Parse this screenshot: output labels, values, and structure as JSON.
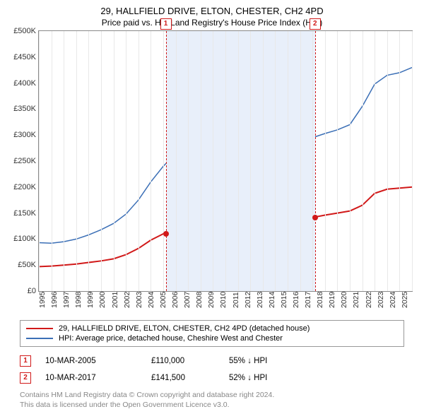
{
  "title": "29, HALLFIELD DRIVE, ELTON, CHESTER, CH2 4PD",
  "subtitle": "Price paid vs. HM Land Registry's House Price Index (HPI)",
  "chart": {
    "type": "line",
    "background_color": "#ffffff",
    "grid_color": "#e8e8e8",
    "border_color": "#888888",
    "ylim": [
      0,
      500000
    ],
    "ytickstep": 50000,
    "yticklabels": [
      "£0",
      "£50K",
      "£100K",
      "£150K",
      "£200K",
      "£250K",
      "£300K",
      "£350K",
      "£400K",
      "£450K",
      "£500K"
    ],
    "xlim": [
      1995,
      2025
    ],
    "xticks": [
      1995,
      1996,
      1997,
      1998,
      1999,
      2000,
      2001,
      2002,
      2003,
      2004,
      2005,
      2006,
      2007,
      2008,
      2009,
      2010,
      2011,
      2012,
      2013,
      2014,
      2015,
      2016,
      2017,
      2018,
      2019,
      2020,
      2021,
      2022,
      2023,
      2024,
      2025
    ],
    "series": [
      {
        "name": "29, HALLFIELD DRIVE, ELTON, CHESTER, CH2 4PD (detached house)",
        "color": "#d11919",
        "line_width": 2,
        "data": [
          [
            1995,
            47000
          ],
          [
            1996,
            48000
          ],
          [
            1997,
            50000
          ],
          [
            1998,
            52000
          ],
          [
            1999,
            55000
          ],
          [
            2000,
            58000
          ],
          [
            2001,
            62000
          ],
          [
            2002,
            70000
          ],
          [
            2003,
            82000
          ],
          [
            2004,
            98000
          ],
          [
            2005,
            110000
          ],
          [
            2005.5,
            116000
          ],
          [
            2006,
            122000
          ],
          [
            2007,
            128000
          ],
          [
            2008,
            130000
          ],
          [
            2008.7,
            124000
          ],
          [
            2009,
            118000
          ],
          [
            2010,
            122000
          ],
          [
            2011,
            121000
          ],
          [
            2012,
            120000
          ],
          [
            2013,
            122000
          ],
          [
            2014,
            126000
          ],
          [
            2015,
            131000
          ],
          [
            2016,
            137000
          ],
          [
            2017,
            141500
          ],
          [
            2018,
            146000
          ],
          [
            2019,
            150000
          ],
          [
            2020,
            154000
          ],
          [
            2021,
            165000
          ],
          [
            2022,
            188000
          ],
          [
            2023,
            196000
          ],
          [
            2024,
            198000
          ],
          [
            2025,
            200000
          ]
        ]
      },
      {
        "name": "HPI: Average price, detached house, Cheshire West and Chester",
        "color": "#3b6fb6",
        "line_width": 1.5,
        "data": [
          [
            1995,
            93000
          ],
          [
            1996,
            92000
          ],
          [
            1997,
            95000
          ],
          [
            1998,
            100000
          ],
          [
            1999,
            108000
          ],
          [
            2000,
            118000
          ],
          [
            2001,
            130000
          ],
          [
            2002,
            148000
          ],
          [
            2003,
            175000
          ],
          [
            2004,
            210000
          ],
          [
            2005,
            240000
          ],
          [
            2005.5,
            252000
          ],
          [
            2006,
            258000
          ],
          [
            2007,
            270000
          ],
          [
            2008,
            273000
          ],
          [
            2008.7,
            250000
          ],
          [
            2009,
            240000
          ],
          [
            2010,
            250000
          ],
          [
            2011,
            248000
          ],
          [
            2012,
            245000
          ],
          [
            2013,
            250000
          ],
          [
            2014,
            260000
          ],
          [
            2015,
            272000
          ],
          [
            2016,
            285000
          ],
          [
            2017,
            295000
          ],
          [
            2018,
            303000
          ],
          [
            2019,
            310000
          ],
          [
            2020,
            320000
          ],
          [
            2021,
            355000
          ],
          [
            2022,
            398000
          ],
          [
            2023,
            415000
          ],
          [
            2024,
            420000
          ],
          [
            2025,
            430000
          ]
        ]
      }
    ],
    "marker_band": {
      "start": 2005.2,
      "end": 2017.2,
      "color": "#e8effa"
    },
    "markers": [
      {
        "num": "1",
        "x": 2005.2,
        "y": 110000
      },
      {
        "num": "2",
        "x": 2017.2,
        "y": 141500
      }
    ],
    "marker_line_color": "#d11919",
    "label_fontsize": 11,
    "title_fontsize": 13
  },
  "legend": {
    "items": [
      {
        "color": "#d11919",
        "label": "29, HALLFIELD DRIVE, ELTON, CHESTER, CH2 4PD (detached house)"
      },
      {
        "color": "#3b6fb6",
        "label": "HPI: Average price, detached house, Cheshire West and Chester"
      }
    ]
  },
  "marker_table": [
    {
      "num": "1",
      "date": "10-MAR-2005",
      "price": "£110,000",
      "pct": "55% ↓ HPI"
    },
    {
      "num": "2",
      "date": "10-MAR-2017",
      "price": "£141,500",
      "pct": "52% ↓ HPI"
    }
  ],
  "footer": {
    "line1": "Contains HM Land Registry data © Crown copyright and database right 2024.",
    "line2": "This data is licensed under the Open Government Licence v3.0."
  }
}
